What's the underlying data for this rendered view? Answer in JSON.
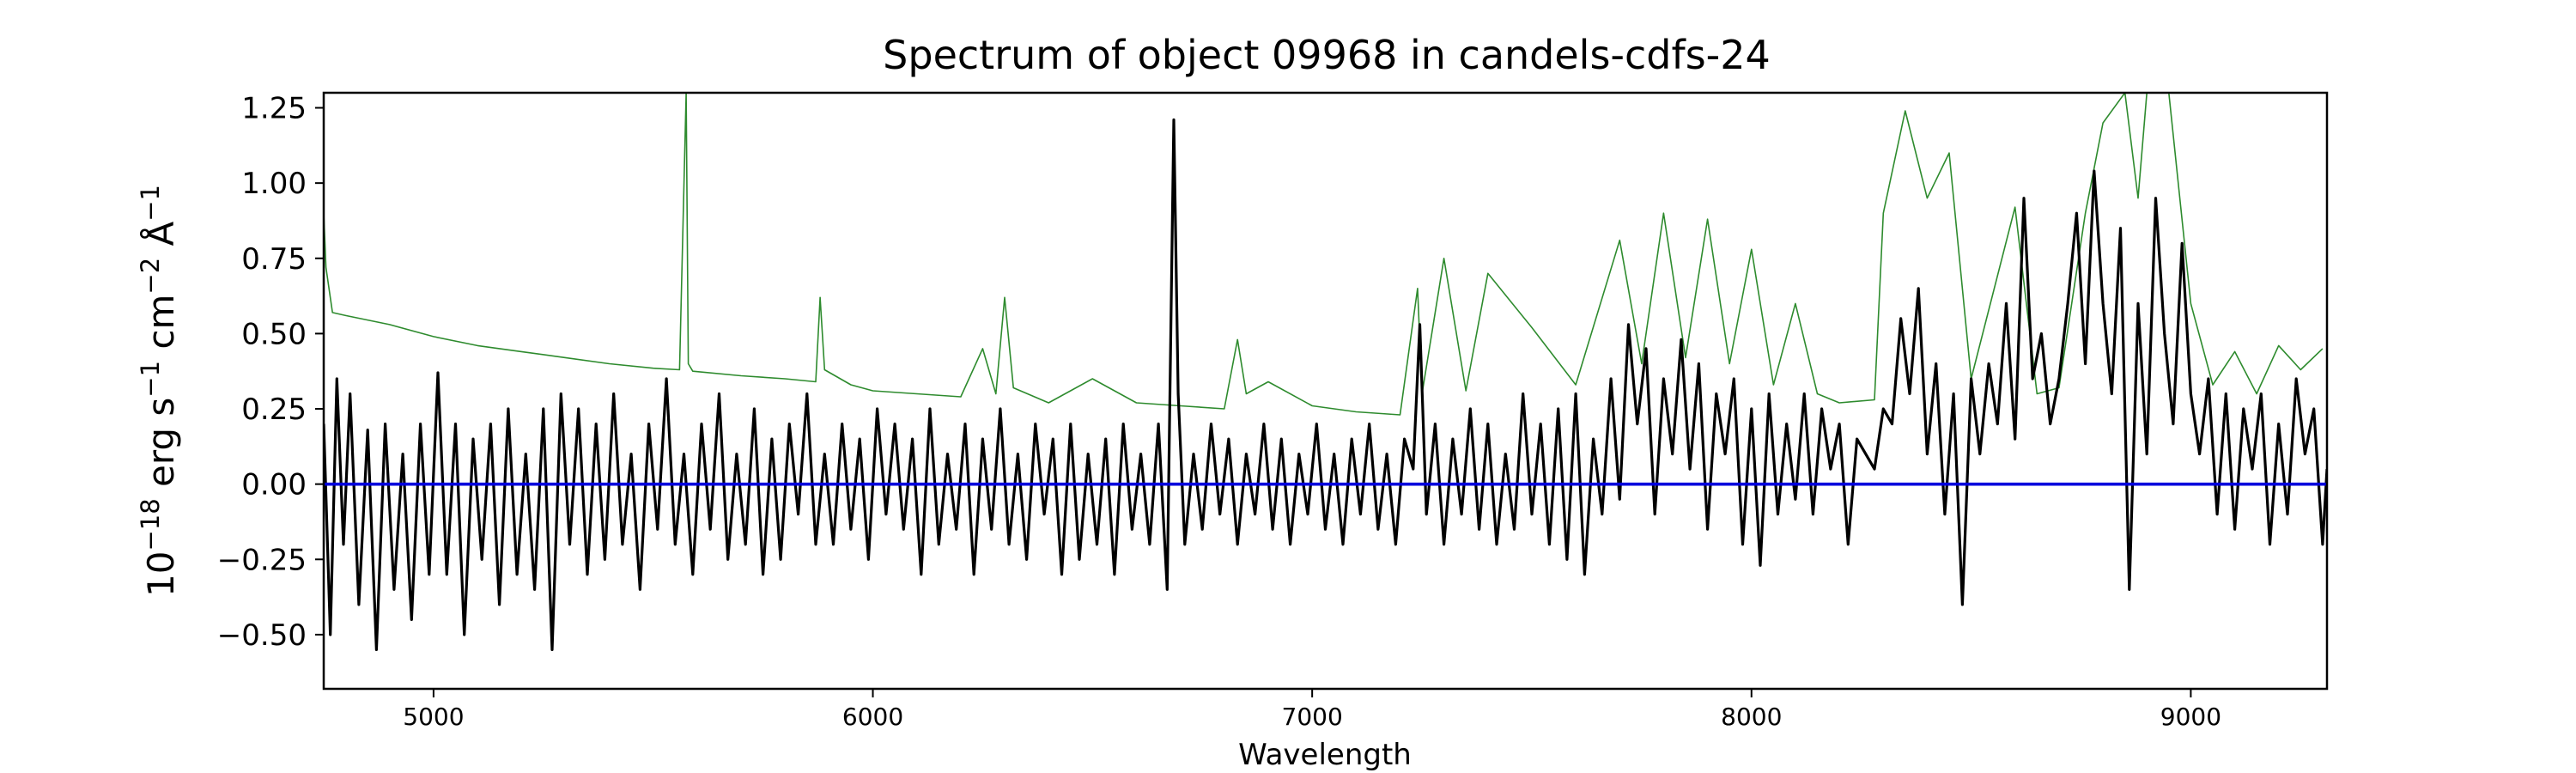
{
  "chart_data": {
    "type": "line",
    "title": "Spectrum of object 09968 in candels-cdfs-24",
    "xlabel": "Wavelength",
    "ylabel": "10^-18 erg s^-1 cm^-2 Å^-1",
    "ylabel_parts": {
      "base": "10",
      "exp1": "−18",
      "unit1": " erg s",
      "exp2": "−1",
      "unit2": " cm",
      "exp3": "−2",
      "unit3": " Å",
      "exp4": "−1"
    },
    "xlim": [
      4750,
      9310
    ],
    "ylim": [
      -0.68,
      1.3
    ],
    "xticks": [
      5000,
      6000,
      7000,
      8000,
      9000
    ],
    "xtick_labels": [
      "5000",
      "6000",
      "7000",
      "8000",
      "9000"
    ],
    "yticks": [
      -0.5,
      -0.25,
      0.0,
      0.25,
      0.5,
      0.75,
      1.0,
      1.25
    ],
    "ytick_labels": [
      "−0.50",
      "−0.25",
      "0.00",
      "0.25",
      "0.50",
      "0.75",
      "1.00",
      "1.25"
    ],
    "grid": false,
    "legend": "none",
    "series": [
      {
        "role": "error",
        "color": "#2e8b2e",
        "x": [
          4750,
          4755,
          4770,
          4800,
          4900,
          5000,
          5100,
          5200,
          5300,
          5400,
          5500,
          5560,
          5575,
          5580,
          5590,
          5700,
          5800,
          5870,
          5880,
          5890,
          5950,
          6000,
          6100,
          6200,
          6250,
          6280,
          6300,
          6320,
          6400,
          6500,
          6600,
          6700,
          6800,
          6830,
          6850,
          6900,
          7000,
          7100,
          7200,
          7240,
          7250,
          7300,
          7350,
          7400,
          7500,
          7600,
          7700,
          7750,
          7800,
          7850,
          7900,
          7950,
          8000,
          8050,
          8100,
          8150,
          8200,
          8280,
          8300,
          8350,
          8400,
          8450,
          8500,
          8600,
          8650,
          8700,
          8760,
          8800,
          8850,
          8880,
          8900,
          8950,
          9000,
          9050,
          9100,
          9150,
          9200,
          9250,
          9300
        ],
        "y": [
          0.9,
          0.72,
          0.57,
          0.56,
          0.53,
          0.49,
          0.46,
          0.44,
          0.42,
          0.4,
          0.385,
          0.38,
          1.3,
          0.4,
          0.375,
          0.36,
          0.35,
          0.34,
          0.62,
          0.38,
          0.33,
          0.31,
          0.3,
          0.29,
          0.45,
          0.3,
          0.62,
          0.32,
          0.27,
          0.35,
          0.27,
          0.26,
          0.25,
          0.48,
          0.3,
          0.34,
          0.26,
          0.24,
          0.23,
          0.65,
          0.3,
          0.75,
          0.31,
          0.7,
          0.52,
          0.33,
          0.81,
          0.4,
          0.9,
          0.42,
          0.88,
          0.4,
          0.78,
          0.33,
          0.6,
          0.3,
          0.27,
          0.28,
          0.9,
          1.24,
          0.95,
          1.1,
          0.35,
          0.92,
          0.3,
          0.32,
          0.9,
          1.2,
          1.3,
          0.95,
          1.3,
          1.3,
          0.6,
          0.33,
          0.44,
          0.3,
          0.46,
          0.38,
          0.45
        ]
      },
      {
        "role": "flux",
        "color": "#000000",
        "x": [
          4750,
          4765,
          4780,
          4795,
          4810,
          4830,
          4850,
          4870,
          4890,
          4910,
          4930,
          4950,
          4970,
          4990,
          5010,
          5030,
          5050,
          5070,
          5090,
          5110,
          5130,
          5150,
          5170,
          5190,
          5210,
          5230,
          5250,
          5270,
          5290,
          5310,
          5330,
          5350,
          5370,
          5390,
          5410,
          5430,
          5450,
          5470,
          5490,
          5510,
          5530,
          5550,
          5570,
          5590,
          5610,
          5630,
          5650,
          5670,
          5690,
          5710,
          5730,
          5750,
          5770,
          5790,
          5810,
          5830,
          5850,
          5870,
          5890,
          5910,
          5930,
          5950,
          5970,
          5990,
          6010,
          6030,
          6050,
          6070,
          6090,
          6110,
          6130,
          6150,
          6170,
          6190,
          6210,
          6230,
          6250,
          6270,
          6290,
          6310,
          6330,
          6350,
          6370,
          6390,
          6410,
          6430,
          6450,
          6470,
          6490,
          6510,
          6530,
          6550,
          6570,
          6590,
          6610,
          6630,
          6650,
          6670,
          6685,
          6695,
          6710,
          6730,
          6750,
          6770,
          6790,
          6810,
          6830,
          6850,
          6870,
          6890,
          6910,
          6930,
          6950,
          6970,
          6990,
          7010,
          7030,
          7050,
          7070,
          7090,
          7110,
          7130,
          7150,
          7170,
          7190,
          7210,
          7230,
          7245,
          7260,
          7280,
          7300,
          7320,
          7340,
          7360,
          7380,
          7400,
          7420,
          7440,
          7460,
          7480,
          7500,
          7520,
          7540,
          7560,
          7580,
          7600,
          7620,
          7640,
          7660,
          7680,
          7700,
          7720,
          7740,
          7760,
          7780,
          7800,
          7820,
          7840,
          7860,
          7880,
          7900,
          7920,
          7940,
          7960,
          7980,
          8000,
          8020,
          8040,
          8060,
          8080,
          8100,
          8120,
          8140,
          8160,
          8180,
          8200,
          8220,
          8240,
          8260,
          8280,
          8300,
          8320,
          8340,
          8360,
          8380,
          8400,
          8420,
          8440,
          8460,
          8480,
          8500,
          8520,
          8540,
          8560,
          8580,
          8600,
          8620,
          8640,
          8660,
          8680,
          8700,
          8720,
          8740,
          8760,
          8780,
          8800,
          8820,
          8840,
          8860,
          8880,
          8900,
          8920,
          8940,
          8960,
          8980,
          9000,
          9020,
          9040,
          9060,
          9080,
          9100,
          9120,
          9140,
          9160,
          9180,
          9200,
          9220,
          9240,
          9260,
          9280,
          9300,
          9310
        ],
        "y": [
          0.2,
          -0.5,
          0.35,
          -0.2,
          0.3,
          -0.4,
          0.18,
          -0.55,
          0.2,
          -0.35,
          0.1,
          -0.45,
          0.2,
          -0.3,
          0.37,
          -0.3,
          0.2,
          -0.5,
          0.15,
          -0.25,
          0.2,
          -0.4,
          0.25,
          -0.3,
          0.1,
          -0.35,
          0.25,
          -0.55,
          0.3,
          -0.2,
          0.25,
          -0.3,
          0.2,
          -0.25,
          0.3,
          -0.2,
          0.1,
          -0.35,
          0.2,
          -0.15,
          0.35,
          -0.2,
          0.1,
          -0.3,
          0.2,
          -0.15,
          0.3,
          -0.25,
          0.1,
          -0.2,
          0.25,
          -0.3,
          0.15,
          -0.25,
          0.2,
          -0.1,
          0.3,
          -0.2,
          0.1,
          -0.2,
          0.2,
          -0.15,
          0.15,
          -0.25,
          0.25,
          -0.1,
          0.2,
          -0.15,
          0.15,
          -0.3,
          0.25,
          -0.2,
          0.1,
          -0.15,
          0.2,
          -0.3,
          0.15,
          -0.15,
          0.25,
          -0.2,
          0.1,
          -0.25,
          0.2,
          -0.1,
          0.15,
          -0.3,
          0.2,
          -0.25,
          0.1,
          -0.2,
          0.15,
          -0.3,
          0.2,
          -0.15,
          0.1,
          -0.2,
          0.2,
          -0.35,
          1.21,
          0.3,
          -0.2,
          0.1,
          -0.15,
          0.2,
          -0.1,
          0.15,
          -0.2,
          0.1,
          -0.1,
          0.2,
          -0.15,
          0.15,
          -0.2,
          0.1,
          -0.1,
          0.2,
          -0.15,
          0.1,
          -0.2,
          0.15,
          -0.1,
          0.2,
          -0.15,
          0.1,
          -0.2,
          0.15,
          0.05,
          0.53,
          -0.1,
          0.2,
          -0.2,
          0.15,
          -0.1,
          0.25,
          -0.15,
          0.2,
          -0.2,
          0.1,
          -0.15,
          0.3,
          -0.1,
          0.2,
          -0.2,
          0.25,
          -0.25,
          0.3,
          -0.3,
          0.15,
          -0.1,
          0.35,
          -0.05,
          0.53,
          0.2,
          0.45,
          -0.1,
          0.35,
          0.1,
          0.48,
          0.05,
          0.4,
          -0.15,
          0.3,
          0.1,
          0.35,
          -0.2,
          0.25,
          -0.27,
          0.3,
          -0.1,
          0.2,
          -0.05,
          0.3,
          -0.1,
          0.25,
          0.05,
          0.2,
          -0.2,
          0.15,
          0.1,
          0.05,
          0.25,
          0.2,
          0.55,
          0.3,
          0.65,
          0.1,
          0.4,
          -0.1,
          0.3,
          -0.4,
          0.35,
          0.1,
          0.4,
          0.2,
          0.6,
          0.15,
          0.95,
          0.35,
          0.5,
          0.2,
          0.35,
          0.6,
          0.9,
          0.4,
          1.04,
          0.6,
          0.3,
          0.85,
          -0.35,
          0.6,
          0.1,
          0.95,
          0.5,
          0.2,
          0.8,
          0.3,
          0.1,
          0.35,
          -0.1,
          0.3,
          -0.15,
          0.25,
          0.05,
          0.3,
          -0.2,
          0.2,
          -0.1,
          0.35,
          0.1,
          0.25,
          -0.2,
          0.05
        ]
      },
      {
        "role": "zero",
        "color": "#0000dd",
        "x": [
          4750,
          9310
        ],
        "y": [
          0.0,
          0.0
        ]
      }
    ]
  }
}
